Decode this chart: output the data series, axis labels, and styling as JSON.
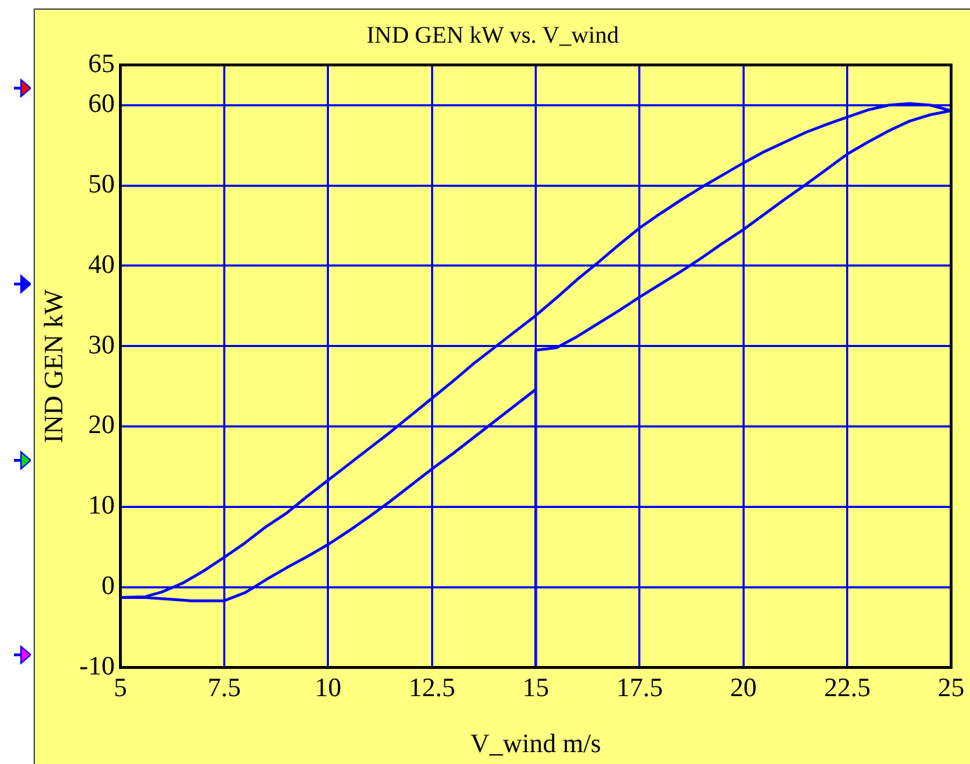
{
  "chart_data": {
    "type": "line",
    "title": "IND GEN kW vs. V_wind",
    "xlabel": "V_wind m/s",
    "ylabel": "IND GEN kW",
    "x": [
      15,
      15,
      15.5,
      16,
      16.5,
      17,
      17.5,
      18,
      18.5,
      19,
      19.5,
      20,
      20.5,
      21,
      21.5,
      22,
      22.5,
      23,
      23.5,
      24,
      24.5,
      25,
      24.5,
      24,
      23.5,
      23,
      22.5,
      22,
      21.5,
      21,
      20.5,
      20,
      19.5,
      19,
      18.5,
      18,
      17.5,
      17,
      16.5,
      16,
      15.5,
      15,
      14.5,
      14,
      13.5,
      13,
      12.5,
      12,
      11.5,
      11,
      10.5,
      10,
      9.5,
      9,
      8.5,
      8,
      7.5,
      7,
      6.5,
      6,
      5.6,
      5,
      5.6,
      6.2,
      6.7,
      7.5,
      8,
      8.5,
      9,
      9.5,
      10,
      10.5,
      11,
      11.5,
      12,
      12.5,
      13,
      13.5,
      14,
      14.5,
      15
    ],
    "series": [
      {
        "color": "#0000ff",
        "values": [
          -10,
          29.5,
          29.8,
          31.2,
          32.8,
          34.4,
          36.1,
          37.7,
          39.3,
          41,
          42.8,
          44.5,
          46.4,
          48.3,
          50.1,
          52,
          53.9,
          55.4,
          56.8,
          58,
          58.8,
          59.3,
          60,
          60.2,
          60,
          59.4,
          58.5,
          57.6,
          56.6,
          55.4,
          54.2,
          52.8,
          51.3,
          49.8,
          48.2,
          46.5,
          44.7,
          42.6,
          40.4,
          38.3,
          36,
          33.8,
          31.8,
          29.8,
          27.8,
          25.6,
          23.5,
          21.4,
          19.3,
          17.3,
          15.3,
          13.3,
          11.3,
          9.2,
          7.5,
          5.5,
          3.7,
          2,
          0.5,
          -0.6,
          -1.2,
          -1.3,
          -1.3,
          -1.5,
          -1.7,
          -1.7,
          -0.7,
          0.9,
          2.4,
          3.8,
          5.3,
          7,
          8.8,
          10.7,
          12.7,
          14.7,
          16.6,
          18.6,
          20.6,
          22.6,
          24.6
        ]
      }
    ],
    "xlim": [
      5,
      25
    ],
    "xticks": [
      5,
      7.5,
      10,
      12.5,
      15,
      17.5,
      20,
      22.5,
      25
    ],
    "ylim": [
      -10,
      65
    ],
    "yticks": [
      -10,
      0,
      10,
      20,
      30,
      40,
      50,
      60,
      65
    ],
    "grid": true,
    "legend": false,
    "marker": "none",
    "line_style": "solid"
  }
}
